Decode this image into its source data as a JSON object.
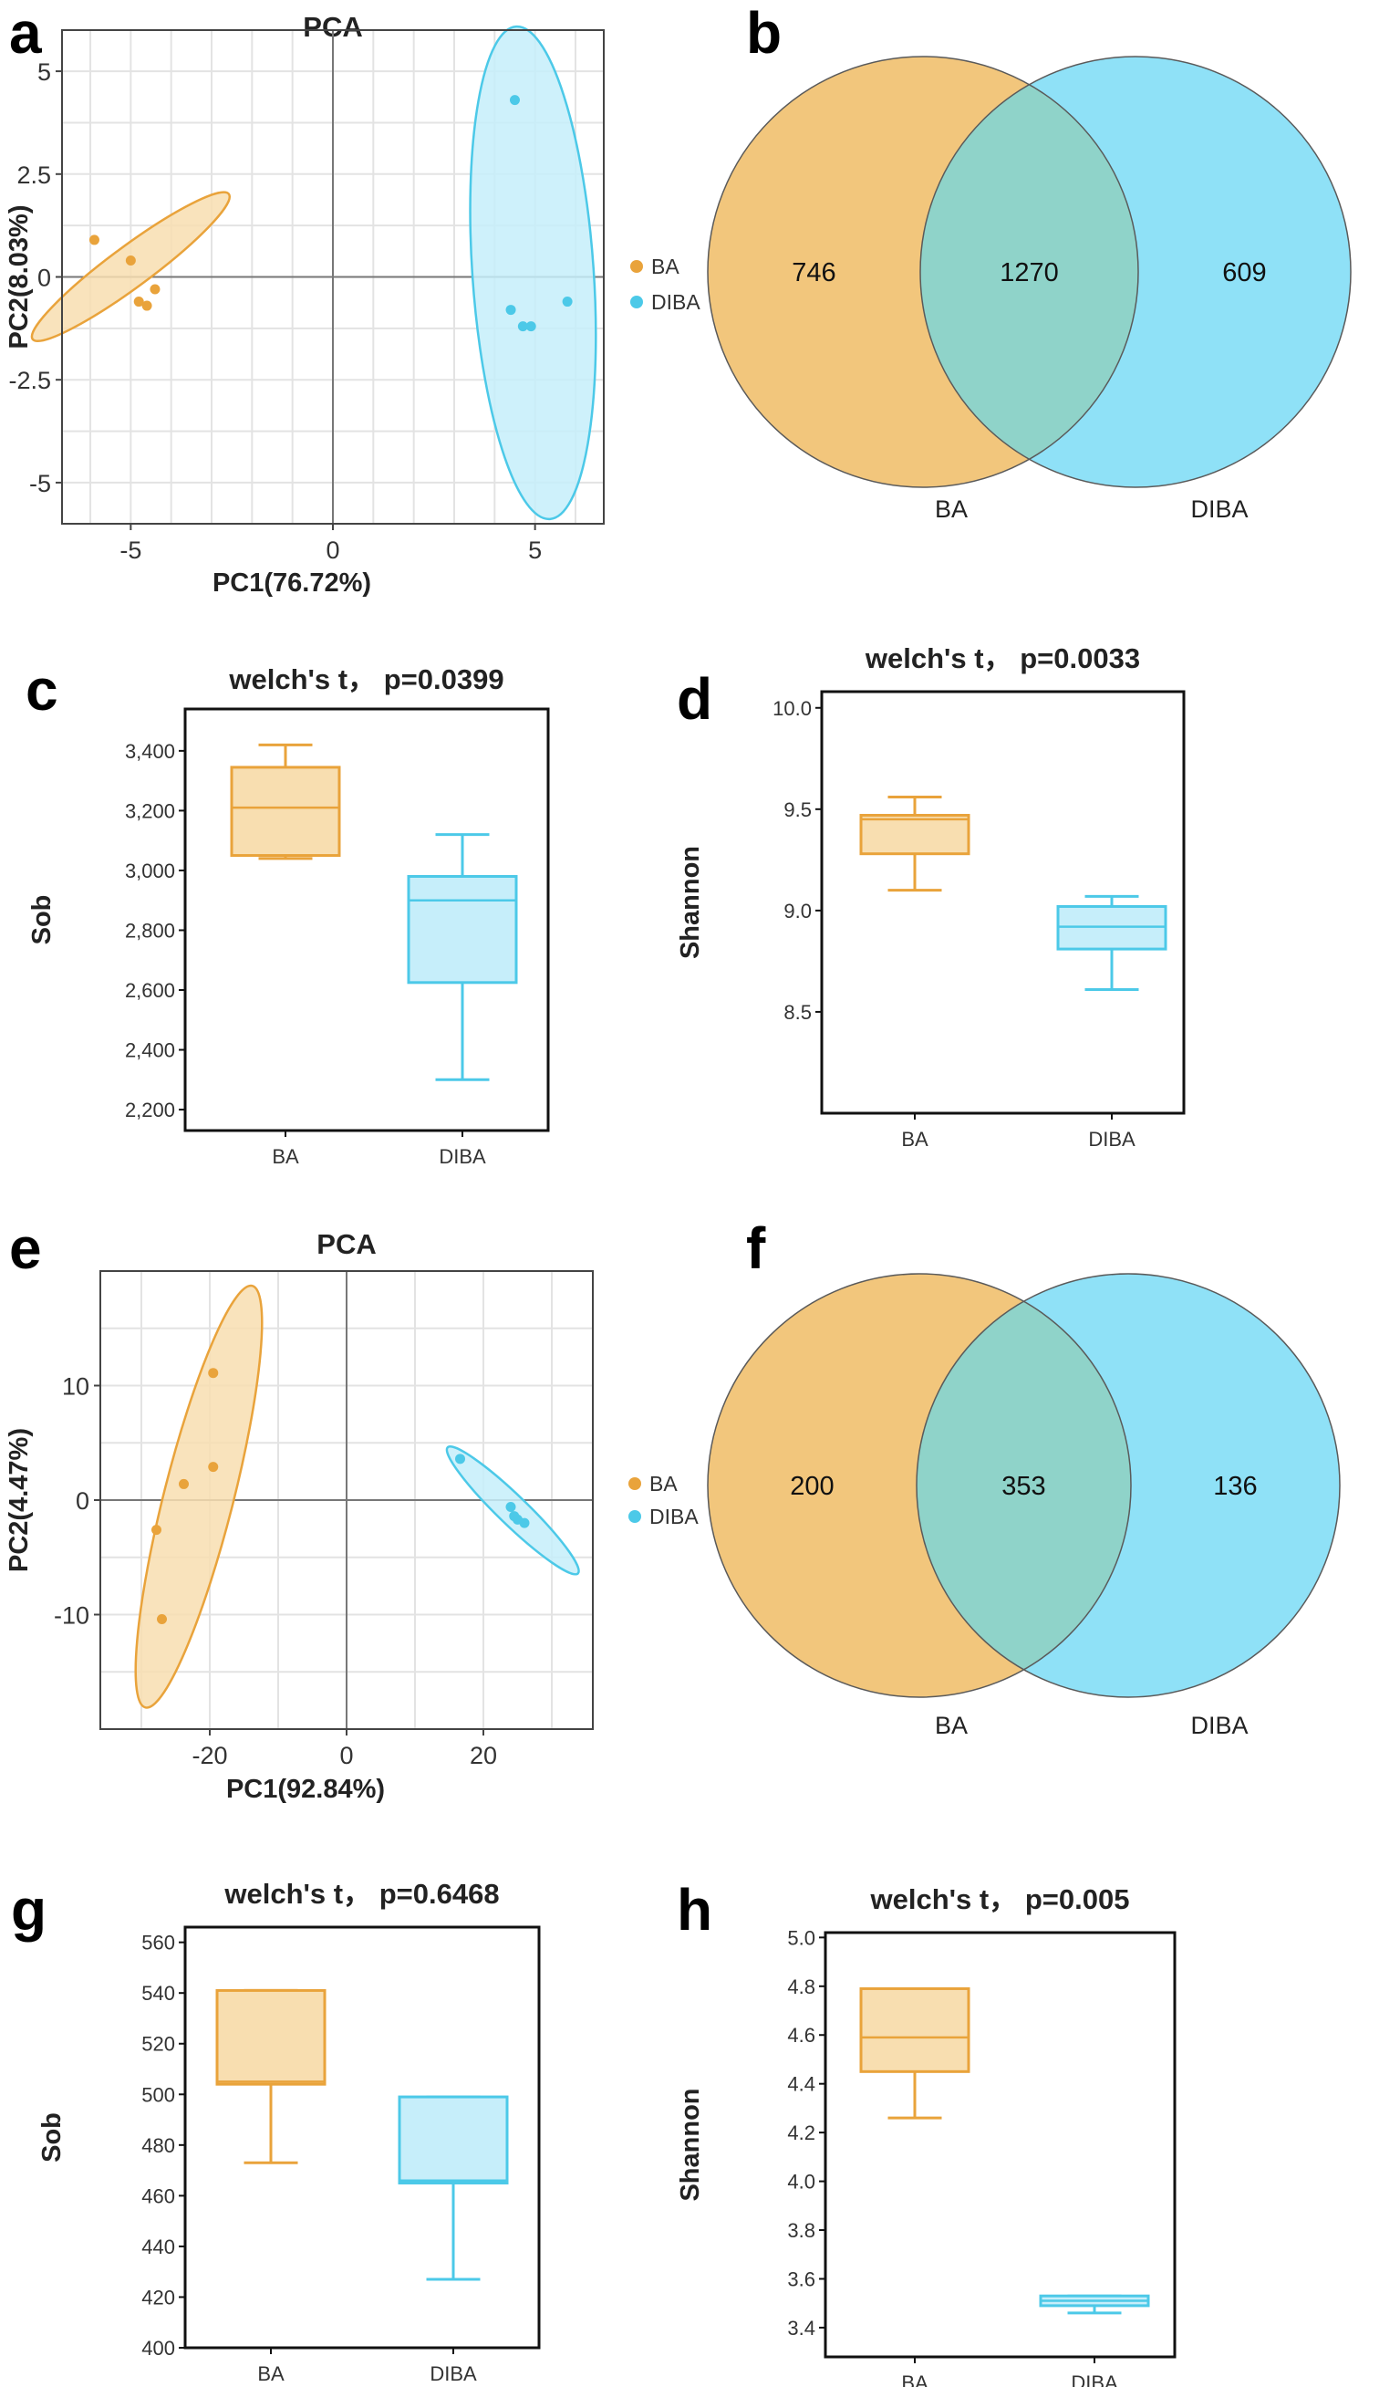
{
  "colors": {
    "BA": "#e9a33b",
    "BA_fill": "#f8deb0",
    "DIBA": "#4cc9e8",
    "DIBA_fill": "#c6eefa",
    "venn_BA": "#f2c67c",
    "venn_DIBA": "#8fe1f7",
    "venn_overlap": "#8fd3c9"
  },
  "panels": {
    "a": {
      "letter": "a"
    },
    "b": {
      "letter": "b"
    },
    "c": {
      "letter": "c"
    },
    "d": {
      "letter": "d"
    },
    "e": {
      "letter": "e"
    },
    "f": {
      "letter": "f"
    },
    "g": {
      "letter": "g"
    },
    "h": {
      "letter": "h"
    }
  },
  "chart_data": [
    {
      "id": "a",
      "type": "scatter",
      "title": "PCA",
      "xlabel": "PC1(76.72%)",
      "ylabel": "PC2(8.03%)",
      "xlim": [
        -6.7,
        6.7
      ],
      "ylim": [
        -6.0,
        6.0
      ],
      "xticks": [
        -5,
        0,
        5
      ],
      "xtick_labels": [
        "-5",
        "0",
        "5"
      ],
      "yticks": [
        5,
        2.5,
        0,
        -2.5,
        -5
      ],
      "ytick_labels": [
        "5",
        "2.5",
        "0",
        "-2.5",
        "-5"
      ],
      "grid": true,
      "legend_position": "right",
      "series": [
        {
          "name": "BA",
          "color_key": "BA",
          "points": [
            [
              -5.9,
              0.9
            ],
            [
              -5.0,
              0.4
            ],
            [
              -4.8,
              -0.6
            ],
            [
              -4.6,
              -0.7
            ],
            [
              -4.4,
              -0.3
            ]
          ],
          "ellipse": {
            "cx": -5.0,
            "cy": 0.25,
            "rx": 3.0,
            "ry": 0.5,
            "angle_deg": 36
          }
        },
        {
          "name": "DIBA",
          "color_key": "DIBA",
          "points": [
            [
              4.5,
              4.3
            ],
            [
              4.4,
              -0.8
            ],
            [
              4.7,
              -1.2
            ],
            [
              4.9,
              -1.2
            ],
            [
              5.8,
              -0.6
            ]
          ],
          "ellipse": {
            "cx": 4.95,
            "cy": 0.1,
            "rx": 6.0,
            "ry": 1.5,
            "angle_deg": 94
          }
        }
      ]
    },
    {
      "id": "b",
      "type": "venn",
      "sets": [
        "BA",
        "DIBA"
      ],
      "values": {
        "BA_only": 746,
        "shared": 1270,
        "DIBA_only": 609
      },
      "labels": {
        "BA_only": "746",
        "shared": "1270",
        "DIBA_only": "609"
      }
    },
    {
      "id": "c",
      "type": "box",
      "title": "welch's t， p=0.0399",
      "ylabel": "Sob",
      "categories": [
        "BA",
        "DIBA"
      ],
      "ylim": [
        2130,
        3540
      ],
      "yticks": [
        2200,
        2400,
        2600,
        2800,
        3000,
        3200,
        3400
      ],
      "ytick_labels": [
        "2,200",
        "2,400",
        "2,600",
        "2,800",
        "3,000",
        "3,200",
        "3,400"
      ],
      "boxes": [
        {
          "name": "BA",
          "min": 3040,
          "q1": 3050,
          "median": 3210,
          "q3": 3345,
          "max": 3420
        },
        {
          "name": "DIBA",
          "min": 2300,
          "q1": 2625,
          "median": 2900,
          "q3": 2980,
          "max": 3120
        }
      ]
    },
    {
      "id": "d",
      "type": "box",
      "title": "welch's t， p=0.0033",
      "ylabel": "Shannon",
      "categories": [
        "BA",
        "DIBA"
      ],
      "ylim": [
        8.0,
        10.08
      ],
      "yticks": [
        8.5,
        9.0,
        9.5,
        10.0
      ],
      "ytick_labels": [
        "8.5",
        "9.0",
        "9.5",
        "10.0"
      ],
      "boxes": [
        {
          "name": "BA",
          "min": 9.1,
          "q1": 9.28,
          "median": 9.45,
          "q3": 9.47,
          "max": 9.56
        },
        {
          "name": "DIBA",
          "min": 8.61,
          "q1": 8.81,
          "median": 8.92,
          "q3": 9.02,
          "max": 9.07
        }
      ]
    },
    {
      "id": "e",
      "type": "scatter",
      "title": "PCA",
      "xlabel": "PC1(92.84%)",
      "ylabel": "PC2(4.47%)",
      "xlim": [
        -36,
        36
      ],
      "ylim": [
        -20,
        20
      ],
      "xticks": [
        -20,
        0,
        20
      ],
      "xtick_labels": [
        "-20",
        "0",
        "20"
      ],
      "yticks": [
        10,
        0,
        -10
      ],
      "ytick_labels": [
        "10",
        "0",
        "-10"
      ],
      "grid": true,
      "legend_position": "right",
      "series": [
        {
          "name": "BA",
          "color_key": "BA",
          "points": [
            [
              -19.5,
              11.1
            ],
            [
              -19.5,
              2.9
            ],
            [
              -23.8,
              1.4
            ],
            [
              -27.8,
              -2.6
            ],
            [
              -27.0,
              -10.4
            ]
          ],
          "ellipse": {
            "cx": -21.6,
            "cy": 0.3,
            "rx": 20.0,
            "ry": 4.5,
            "angle_deg": 67
          }
        },
        {
          "name": "DIBA",
          "color_key": "DIBA",
          "points": [
            [
              16.6,
              3.6
            ],
            [
              24.0,
              -0.6
            ],
            [
              24.5,
              -1.4
            ],
            [
              25.0,
              -1.7
            ],
            [
              26.0,
              -2.0
            ]
          ],
          "ellipse": {
            "cx": 24.3,
            "cy": -0.9,
            "rx": 11.0,
            "ry": 1.4,
            "angle_deg": -30
          }
        }
      ]
    },
    {
      "id": "f",
      "type": "venn",
      "sets": [
        "BA",
        "DIBA"
      ],
      "values": {
        "BA_only": 200,
        "shared": 353,
        "DIBA_only": 136
      },
      "labels": {
        "BA_only": "200",
        "shared": "353",
        "DIBA_only": "136"
      }
    },
    {
      "id": "g",
      "type": "box",
      "title": "welch's t， p=0.6468",
      "ylabel": "Sob",
      "categories": [
        "BA",
        "DIBA"
      ],
      "ylim": [
        400,
        566
      ],
      "yticks": [
        400,
        420,
        440,
        460,
        480,
        500,
        520,
        540,
        560
      ],
      "ytick_labels": [
        "400",
        "420",
        "440",
        "460",
        "480",
        "500",
        "520",
        "540",
        "560"
      ],
      "boxes": [
        {
          "name": "BA",
          "min": 473,
          "q1": 504,
          "median": 505,
          "q3": 541,
          "max": 541
        },
        {
          "name": "DIBA",
          "min": 427,
          "q1": 465,
          "median": 466,
          "q3": 499,
          "max": 499
        }
      ]
    },
    {
      "id": "h",
      "type": "box",
      "title": "welch's t， p=0.005",
      "ylabel": "Shannon",
      "categories": [
        "BA",
        "DIBA"
      ],
      "ylim": [
        3.28,
        5.02
      ],
      "yticks": [
        3.4,
        3.6,
        3.8,
        4.0,
        4.2,
        4.4,
        4.6,
        4.8,
        5.0
      ],
      "ytick_labels": [
        "3.4",
        "3.6",
        "3.8",
        "4.0",
        "4.2",
        "4.4",
        "4.6",
        "4.8",
        "5.0"
      ],
      "boxes": [
        {
          "name": "BA",
          "min": 4.26,
          "q1": 4.45,
          "median": 4.59,
          "q3": 4.79,
          "max": 4.79
        },
        {
          "name": "DIBA",
          "min": 3.46,
          "q1": 3.49,
          "median": 3.51,
          "q3": 3.53,
          "max": 3.53
        }
      ]
    }
  ]
}
